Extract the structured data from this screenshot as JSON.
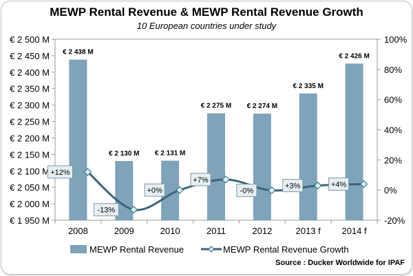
{
  "chart_data": {
    "type": "bar",
    "title": "MEWP Rental Revenue & MEWP Rental Revenue Growth",
    "subtitle": "10 European countries under study",
    "categories": [
      "2008",
      "2009",
      "2010",
      "2011",
      "2012",
      "2013 f",
      "2014 f"
    ],
    "series": [
      {
        "name": "MEWP Rental Revenue",
        "type": "bar",
        "axis": "left",
        "unit": "€ M",
        "values": [
          2438,
          2130,
          2131,
          2275,
          2274,
          2335,
          2426
        ],
        "data_labels": [
          "€ 2 438 M",
          "€ 2 130 M",
          "€ 2 131 M",
          "€ 2 275 M",
          "€ 2 274 M",
          "€ 2 335 M",
          "€ 2 426 M"
        ],
        "color": "#7fa3b8"
      },
      {
        "name": "MEWP Rental Revenue Growth",
        "type": "line",
        "axis": "right",
        "unit": "%",
        "values": [
          12,
          -13,
          0,
          7,
          -0.2,
          3,
          4
        ],
        "data_labels": [
          "+12%",
          "-13%",
          "+0%",
          "+7%",
          "-0%",
          "+3%",
          "+4%"
        ],
        "color": "#3b6478",
        "marker_color": "#ccf2f5"
      }
    ],
    "y_left": {
      "range": [
        1950,
        2500
      ],
      "ticks": [
        1950,
        2000,
        2050,
        2100,
        2150,
        2200,
        2250,
        2300,
        2350,
        2400,
        2450,
        2500
      ],
      "tick_labels": [
        "€ 1 950 M",
        "€ 2 000 M",
        "€ 2 050 M",
        "€ 2 100 M",
        "€ 2 150 M",
        "€ 2 200 M",
        "€ 2 250 M",
        "€ 2 300 M",
        "€ 2 350 M",
        "€ 2 400 M",
        "€ 2 450 M",
        "€ 2 500 M"
      ]
    },
    "y_right": {
      "range": [
        -20,
        100
      ],
      "ticks": [
        -20,
        0,
        20,
        40,
        60,
        80,
        100
      ],
      "tick_labels": [
        "-20%",
        "0%",
        "20%",
        "40%",
        "60%",
        "80%",
        "100%"
      ]
    },
    "grid": false,
    "legend": "bottom",
    "source": "Source : Ducker Worldwide for IPAF"
  }
}
